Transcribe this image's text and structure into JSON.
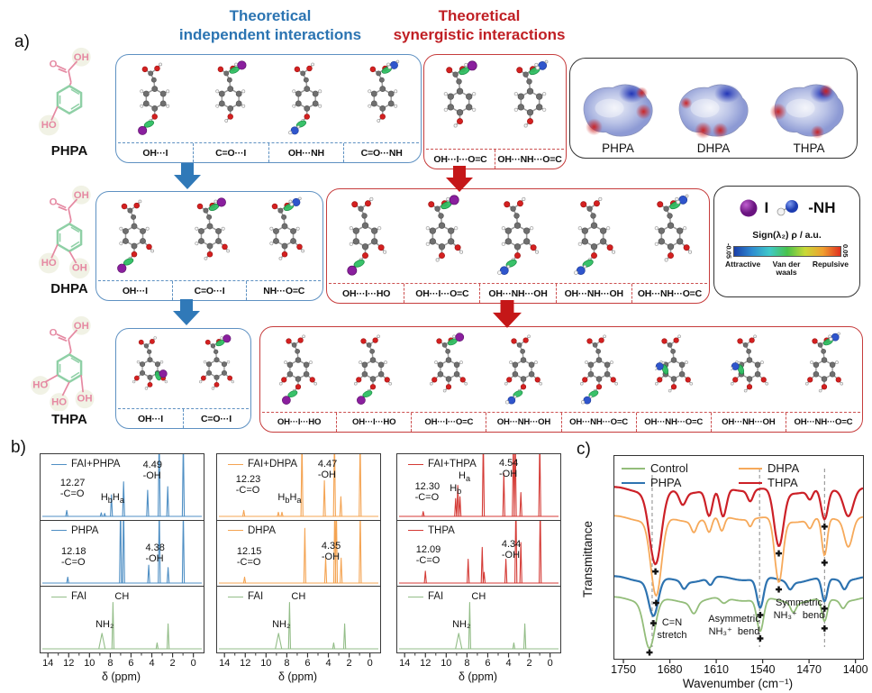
{
  "panel_a": {
    "label": "a)",
    "header_independent": {
      "line1": "Theoretical",
      "line2": "independent interactions"
    },
    "header_synergistic": {
      "line1": "Theoretical",
      "line2": "synergistic interactions"
    },
    "left_molecules": [
      {
        "name": "PHPA",
        "variant": 1
      },
      {
        "name": "DHPA",
        "variant": 2
      },
      {
        "name": "THPA",
        "variant": 3
      }
    ],
    "esp_box": {
      "labels": [
        "PHPA",
        "DHPA",
        "THPA"
      ]
    },
    "legend_box": {
      "iodine_label": "I",
      "nh_label": "-NH",
      "scale_title": "Sign(λ₂) ρ / a.u.",
      "scale_min": "-0.05",
      "scale_max": "0.05",
      "scale_left": "Attractive",
      "scale_mid": "Van der waals",
      "scale_right": "Repulsive"
    },
    "rows": [
      {
        "blue": {
          "variant": 1,
          "cells": [
            {
              "label": "OH···I",
              "decor": "I",
              "pos": "bottom"
            },
            {
              "label": "C=O···I",
              "decor": "I",
              "pos": "top"
            },
            {
              "label": "OH···NH",
              "decor": "NH",
              "pos": "bottom"
            },
            {
              "label": "C=O···NH",
              "decor": "NH",
              "pos": "top"
            }
          ]
        },
        "red": {
          "variant": 1,
          "cells": [
            {
              "label": "OH···I···O=C",
              "decor": "I",
              "pos": "top"
            },
            {
              "label": "OH···NH···O=C",
              "decor": "NH",
              "pos": "top"
            }
          ]
        }
      },
      {
        "blue": {
          "variant": 2,
          "cells": [
            {
              "label": "OH···I",
              "decor": "I",
              "pos": "bottom"
            },
            {
              "label": "C=O···I",
              "decor": "I",
              "pos": "top"
            },
            {
              "label": "NH···O=C",
              "decor": "NH",
              "pos": "top"
            }
          ]
        },
        "red": {
          "variant": 2,
          "cells": [
            {
              "label": "OH···I···HO",
              "decor": "I",
              "pos": "bottom"
            },
            {
              "label": "OH···I···O=C",
              "decor": "I",
              "pos": "top"
            },
            {
              "label": "OH···NH···OH",
              "decor": "NH",
              "pos": "bottom"
            },
            {
              "label": "OH···NH···OH",
              "decor": "NH",
              "pos": "bottom"
            },
            {
              "label": "OH···NH···O=C",
              "decor": "NH",
              "pos": "top"
            }
          ]
        }
      },
      {
        "blue": {
          "variant": 3,
          "cells": [
            {
              "label": "OH···I",
              "decor": "I",
              "pos": "right"
            },
            {
              "label": "C=O···I",
              "decor": "I",
              "pos": "top"
            }
          ]
        },
        "red": {
          "variant": 3,
          "cells": [
            {
              "label": "OH···I···HO",
              "decor": "I",
              "pos": "bottom"
            },
            {
              "label": "OH···I···HO",
              "decor": "I",
              "pos": "bottom"
            },
            {
              "label": "OH···I···O=C",
              "decor": "I",
              "pos": "top"
            },
            {
              "label": "OH···NH···OH",
              "decor": "NH",
              "pos": "bottom"
            },
            {
              "label": "OH···NH···O=C",
              "decor": "NH",
              "pos": "bottom"
            },
            {
              "label": "OH···NH···O=C",
              "decor": "NH",
              "pos": "left"
            },
            {
              "label": "OH···NH···OH",
              "decor": "NH",
              "pos": "left"
            },
            {
              "label": "OH···NH···O=C",
              "decor": "NH",
              "pos": "top"
            }
          ]
        }
      }
    ]
  },
  "panel_b": {
    "label": "b)"
  },
  "panel_c": {
    "label": "c)",
    "ylabel": "Transmittance",
    "xlabel": "Wavenumber (cm⁻¹)"
  },
  "chart_data": [
    {
      "type": "line",
      "panel": "b-left",
      "xlabel": "δ (ppm)",
      "x_ticks": [
        14,
        12,
        10,
        8,
        6,
        4,
        2,
        0
      ],
      "x_range": [
        14.45,
        -0.55
      ],
      "series": [
        {
          "name": "FAI+PHPA",
          "color": "#4f8fc4",
          "peaks": [
            [
              12.27,
              0.1
            ],
            [
              8.95,
              0.06
            ],
            [
              8.62,
              0.05
            ],
            [
              7.97,
              0.36
            ],
            [
              6.8,
              0.58
            ],
            [
              4.49,
              0.44
            ],
            [
              3.38,
              1.45
            ],
            [
              2.55,
              0.5
            ],
            [
              1.05,
              1.3
            ]
          ],
          "annotations": [
            {
              "lines": [
                "12.27",
                "-C=O"
              ],
              "ppm": 12.9,
              "y": 26
            },
            {
              "subs": [
                [
                  "H",
                  "b"
                ],
                [
                  "H",
                  "a"
                ]
              ],
              "ppm": 9.0,
              "y": 42
            },
            {
              "lines": [
                "4.49",
                "-OH"
              ],
              "ppm": 4.95,
              "y": 6
            }
          ]
        },
        {
          "name": "PHPA",
          "color": "#4f8fc4",
          "peaks": [
            [
              12.18,
              0.1
            ],
            [
              7.1,
              1.35
            ],
            [
              6.8,
              1.35
            ],
            [
              4.38,
              0.3
            ],
            [
              3.37,
              1.3
            ],
            [
              2.52,
              0.26
            ],
            [
              1.05,
              1.2
            ]
          ],
          "annotations": [
            {
              "lines": [
                "12.18",
                "-C=O"
              ],
              "ppm": 12.8,
              "y": 28
            },
            {
              "lines": [
                "4.38",
                "-OH"
              ],
              "ppm": 4.7,
              "y": 24
            }
          ]
        },
        {
          "name": "FAI",
          "color": "#93bd88",
          "peaks": [
            [
              8.88,
              0.26,
              3.5
            ],
            [
              7.83,
              0.78
            ],
            [
              3.58,
              0.1
            ],
            [
              2.52,
              0.42
            ]
          ],
          "annotations": [
            {
              "lines": [
                "NH₂"
              ],
              "ppm": 9.5,
              "y": 36
            },
            {
              "lines": [
                "CH"
              ],
              "ppm": 7.65,
              "y": 5
            }
          ]
        }
      ]
    },
    {
      "type": "line",
      "panel": "b-middle",
      "xlabel": "δ (ppm)",
      "x_ticks": [
        14,
        12,
        10,
        8,
        6,
        4,
        2,
        0
      ],
      "x_range": [
        14.45,
        -0.55
      ],
      "series": [
        {
          "name": "FAI+DHPA",
          "color": "#f4a453",
          "peaks": [
            [
              12.23,
              0.1
            ],
            [
              8.9,
              0.07
            ],
            [
              8.55,
              0.07
            ],
            [
              6.63,
              1.35
            ],
            [
              4.47,
              0.6
            ],
            [
              3.5,
              1.4
            ],
            [
              2.88,
              0.33
            ],
            [
              1.03,
              1.3
            ]
          ],
          "annotations": [
            {
              "lines": [
                "12.23",
                "-C=O"
              ],
              "ppm": 13.0,
              "y": 22
            },
            {
              "subs": [
                [
                  "H",
                  "b"
                ],
                [
                  "H",
                  "a"
                ]
              ],
              "ppm": 8.95,
              "y": 42
            },
            {
              "lines": [
                "4.47",
                "-OH"
              ],
              "ppm": 5.1,
              "y": 5
            }
          ]
        },
        {
          "name": "DHPA",
          "color": "#f4a453",
          "peaks": [
            [
              12.15,
              0.1
            ],
            [
              6.35,
              0.92
            ],
            [
              4.35,
              0.42
            ],
            [
              3.47,
              1.3
            ],
            [
              3.32,
              1.3
            ],
            [
              2.86,
              0.42
            ],
            [
              1.02,
              1.2
            ]
          ],
          "annotations": [
            {
              "lines": [
                "12.15",
                "-C=O"
              ],
              "ppm": 12.9,
              "y": 28
            },
            {
              "lines": [
                "4.35",
                "-OH"
              ],
              "ppm": 4.75,
              "y": 22
            }
          ]
        },
        {
          "name": "FAI",
          "color": "#93bd88",
          "peaks": [
            [
              8.88,
              0.26,
              3.5
            ],
            [
              7.83,
              0.78
            ],
            [
              3.58,
              0.1
            ],
            [
              2.52,
              0.42
            ]
          ],
          "annotations": [
            {
              "lines": [
                "NH₂"
              ],
              "ppm": 9.5,
              "y": 36
            },
            {
              "lines": [
                "CH"
              ],
              "ppm": 7.65,
              "y": 5
            }
          ]
        }
      ]
    },
    {
      "type": "line",
      "panel": "b-right",
      "xlabel": "δ (ppm)",
      "x_ticks": [
        14,
        12,
        10,
        8,
        6,
        4,
        2,
        0
      ],
      "x_range": [
        14.45,
        -0.55
      ],
      "series": [
        {
          "name": "FAI+THPA",
          "color": "#d43a35",
          "peaks": [
            [
              12.3,
              0.08
            ],
            [
              9.18,
              0.3
            ],
            [
              8.97,
              0.52
            ],
            [
              8.76,
              0.33
            ],
            [
              6.52,
              1.35
            ],
            [
              4.54,
              0.72
            ],
            [
              3.62,
              1.35
            ],
            [
              3.44,
              1.35
            ],
            [
              2.9,
              0.4
            ],
            [
              1.08,
              1.3
            ]
          ],
          "annotations": [
            {
              "lines": [
                "12.30",
                "-C=O"
              ],
              "ppm": 13.1,
              "y": 30
            },
            {
              "subs": [
                [
                  "H",
                  "b"
                ]
              ],
              "ppm": 9.75,
              "y": 32
            },
            {
              "subs": [
                [
                  "H",
                  "a"
                ]
              ],
              "ppm": 8.9,
              "y": 18
            },
            {
              "lines": [
                "4.54",
                "-OH"
              ],
              "ppm": 5.0,
              "y": 4
            }
          ]
        },
        {
          "name": "THPA",
          "color": "#d43a35",
          "peaks": [
            [
              12.09,
              0.2
            ],
            [
              7.97,
              0.4
            ],
            [
              6.62,
              0.6
            ],
            [
              6.44,
              0.18
            ],
            [
              4.34,
              0.4
            ],
            [
              3.38,
              1.4
            ],
            [
              2.9,
              0.68
            ],
            [
              1.04,
              1.3
            ]
          ],
          "annotations": [
            {
              "lines": [
                "12.09",
                "-C=O"
              ],
              "ppm": 13.0,
              "y": 26
            },
            {
              "lines": [
                "4.34",
                "-OH"
              ],
              "ppm": 4.75,
              "y": 20
            }
          ]
        },
        {
          "name": "FAI",
          "color": "#93bd88",
          "peaks": [
            [
              8.88,
              0.26,
              3.5
            ],
            [
              7.83,
              0.78
            ],
            [
              3.58,
              0.1
            ],
            [
              2.52,
              0.42
            ]
          ],
          "annotations": [
            {
              "lines": [
                "NH₂"
              ],
              "ppm": 9.5,
              "y": 36
            },
            {
              "lines": [
                "CH"
              ],
              "ppm": 7.65,
              "y": 5
            }
          ]
        }
      ]
    },
    {
      "type": "line",
      "panel": "c",
      "xlabel": "Wavenumber (cm⁻¹)",
      "ylabel": "Transmittance",
      "x_ticks": [
        1750,
        1680,
        1610,
        1540,
        1470,
        1400
      ],
      "x_range": [
        1765,
        1390
      ],
      "dashed_guides": [
        1708,
        1546,
        1448
      ],
      "series": [
        {
          "name": "Control",
          "color": "#93bd7a",
          "baseline": 160,
          "dips": [
            [
              1712,
              8,
              52
            ],
            [
              1645,
              5,
              12
            ],
            [
              1600,
              5,
              6
            ],
            [
              1545,
              5,
              36
            ],
            [
              1495,
              4,
              10
            ],
            [
              1448,
              4,
              25
            ],
            [
              1420,
              4,
              8
            ]
          ],
          "marked": [
            1712,
            1545,
            1448
          ]
        },
        {
          "name": "PHPA",
          "color": "#2e73b0",
          "baseline": 137,
          "dips": [
            [
              1706,
              7,
              40
            ],
            [
              1660,
              4,
              8
            ],
            [
              1620,
              4,
              8
            ],
            [
              1545,
              5,
              33
            ],
            [
              1500,
              4,
              8
            ],
            [
              1448,
              4,
              26
            ],
            [
              1418,
              4,
              10
            ]
          ],
          "marked": [
            1706,
            1545,
            1448
          ]
        },
        {
          "name": "DHPA",
          "color": "#f6a95a",
          "baseline": 70,
          "dips": [
            [
              1702,
              8,
              85
            ],
            [
              1645,
              4,
              12
            ],
            [
              1622,
              4,
              16
            ],
            [
              1603,
              4,
              16
            ],
            [
              1560,
              3,
              8
            ],
            [
              1517,
              6,
              70
            ],
            [
              1470,
              4,
              10
            ],
            [
              1448,
              4,
              42
            ],
            [
              1412,
              6,
              30
            ]
          ],
          "marked": [
            1702,
            1517,
            1448
          ]
        },
        {
          "name": "THPA",
          "color": "#cc2027",
          "baseline": 38,
          "dips": [
            [
              1703,
              9,
              82
            ],
            [
              1662,
              5,
              14
            ],
            [
              1622,
              5,
              30
            ],
            [
              1601,
              5,
              32
            ],
            [
              1560,
              4,
              12
            ],
            [
              1517,
              7,
              62
            ],
            [
              1470,
              4,
              10
            ],
            [
              1448,
              5,
              34
            ],
            [
              1412,
              7,
              28
            ]
          ],
          "marked": [
            1703,
            1517,
            1448
          ]
        }
      ],
      "annotations": [
        {
          "lines": [
            "C=N",
            "stretch"
          ],
          "x": 64,
          "y": 179
        },
        {
          "lines": [
            "Asymmetric",
            "NH₃⁺  bend"
          ],
          "x": 133,
          "y": 175
        },
        {
          "lines": [
            "Symmetric",
            "NH₃⁺  bend"
          ],
          "x": 205,
          "y": 157
        }
      ]
    }
  ]
}
